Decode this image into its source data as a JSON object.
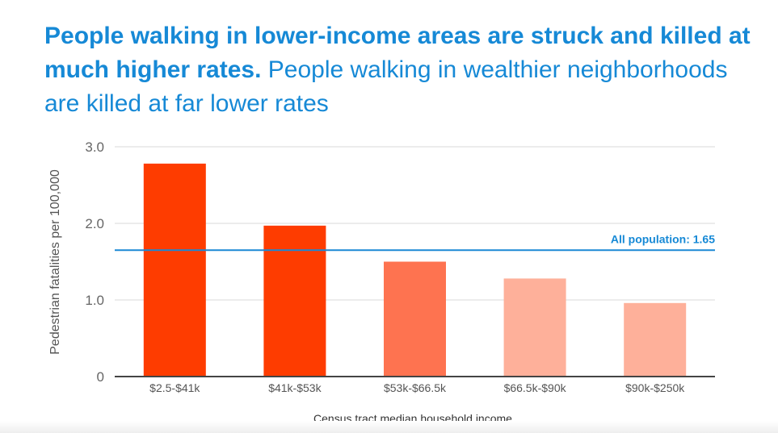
{
  "title_bold": "People walking in lower-income areas are struck and killed at much higher rates.",
  "title_rest": "People walking in wealthier neighborhoods are killed at far lower rates",
  "chart_data": {
    "type": "bar",
    "categories": [
      "$2.5-$41k",
      "$41k-$53k",
      "$53k-$66.5k",
      "$66.5k-$90k",
      "$90k-$250k"
    ],
    "values": [
      2.78,
      1.97,
      1.5,
      1.28,
      0.96
    ],
    "colors": [
      "#fe3c00",
      "#fe3c00",
      "#fe7350",
      "#feb09a",
      "#feb09a"
    ],
    "ylabel": "Pedestrian fatalities per 100,000",
    "xlabel": "Census tract median household income",
    "ylim": [
      0,
      3.0
    ],
    "yticks": [
      0,
      1.0,
      2.0,
      3.0
    ],
    "ytick_labels": [
      "0",
      "1.0",
      "2.0",
      "3.0"
    ],
    "reference_line": {
      "value": 1.65,
      "label": "All population: 1.65",
      "color": "#1a88d5"
    },
    "grid": true
  }
}
